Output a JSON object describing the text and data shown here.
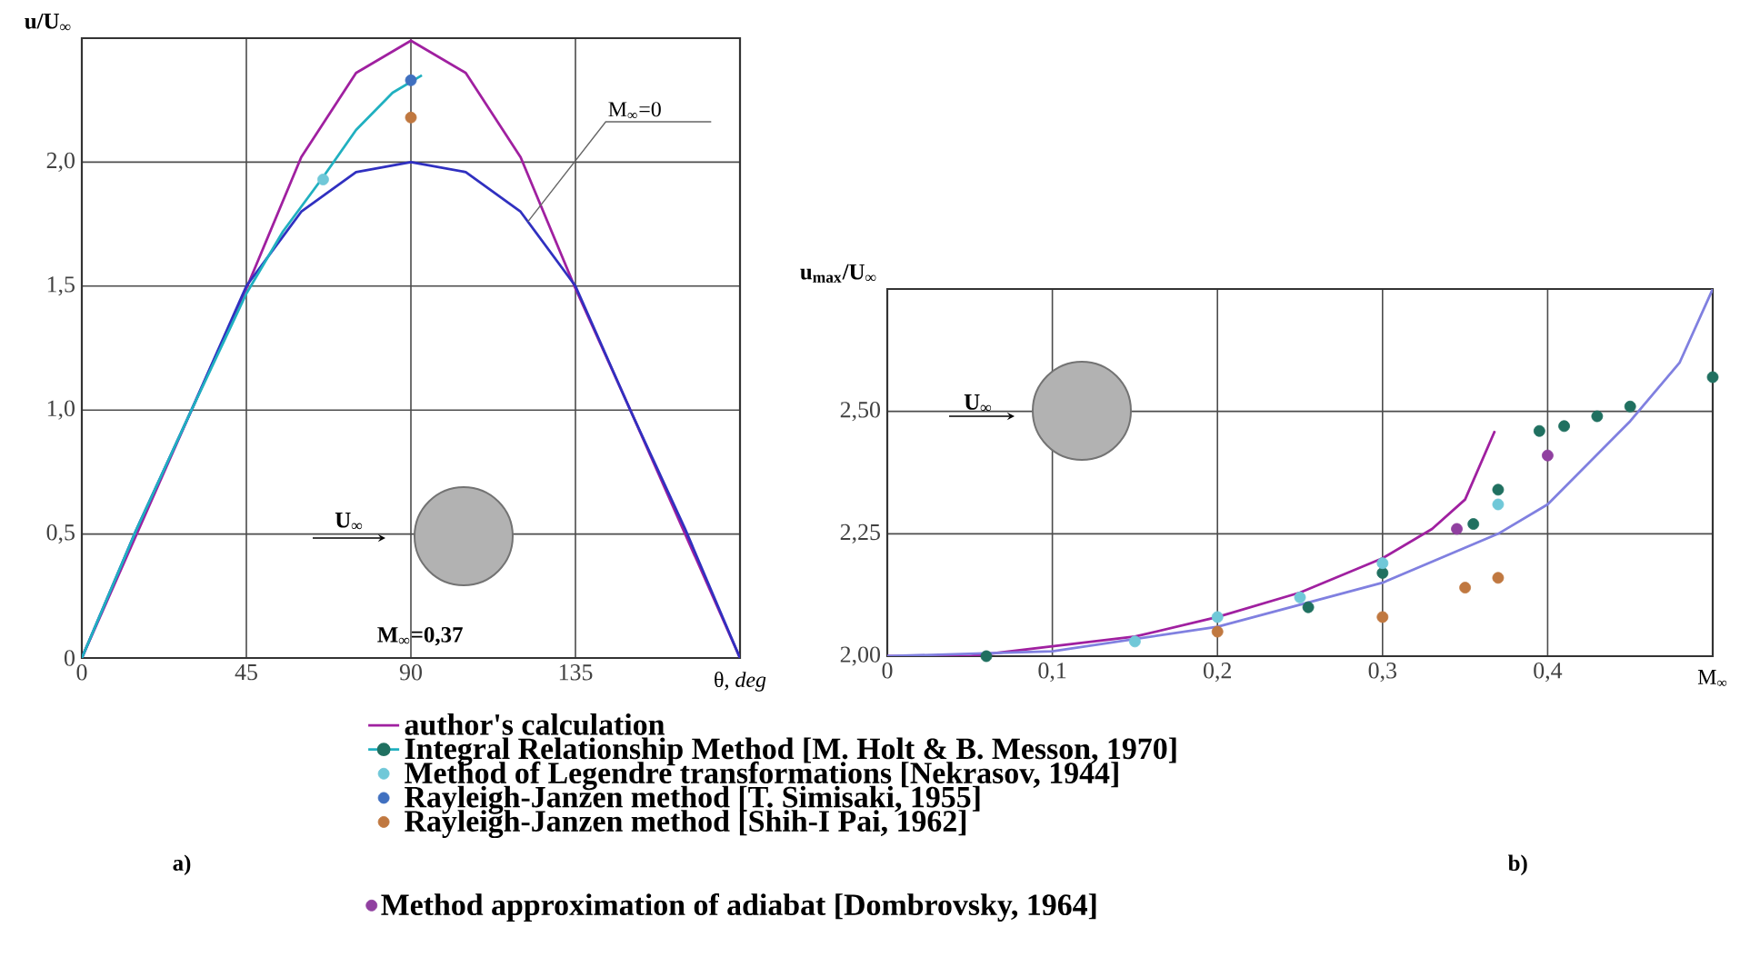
{
  "chart_data": [
    {
      "type": "line",
      "xlabel": "θ, *deg*",
      "ylabel": "u/U$_{∞}$",
      "xlim": [
        0,
        180
      ],
      "xticks": [
        0,
        45,
        90,
        135
      ],
      "ylim": [
        0,
        2.5
      ],
      "yticks": [
        0,
        {
          "value": 0.5,
          "label": "0,5"
        },
        {
          "value": 1.0,
          "label": "1,0"
        },
        {
          "value": 1.5,
          "label": "1,5"
        },
        {
          "value": 2.0,
          "label": "2,0"
        }
      ],
      "grid": true,
      "legend": "bottom",
      "series": [
        {
          "name": "author's calculation",
          "color": "#a020a0",
          "x": [
            0,
            15,
            30,
            45,
            60,
            75,
            90,
            105,
            120,
            135,
            150,
            165,
            180
          ],
          "values": [
            0,
            0.5,
            1.0,
            1.49,
            2.02,
            2.36,
            2.49,
            2.36,
            2.02,
            1.49,
            1.0,
            0.5,
            0
          ]
        },
        {
          "color": "#3030c0",
          "x": [
            0,
            15,
            30,
            45,
            60,
            75,
            90,
            105,
            120,
            135,
            150,
            165,
            180
          ],
          "values": [
            0,
            0.52,
            1.0,
            1.5,
            1.8,
            1.96,
            2.0,
            1.96,
            1.8,
            1.5,
            1.0,
            0.52,
            0
          ]
        },
        {
          "name": "Integral Relationship Method [M. Holt & B. Messon, 1970]",
          "color": "#20b0c0",
          "x": [
            0,
            15,
            30,
            45,
            55,
            66,
            75,
            85,
            93
          ],
          "values": [
            0,
            0.52,
            1.0,
            1.47,
            1.72,
            1.94,
            2.13,
            2.28,
            2.35
          ]
        },
        {
          "name": "Method of Legendre transformations [Nekrasov, 1944]",
          "type": "scatter",
          "marker": "circle",
          "color": "#70c8d8",
          "x": [
            66
          ],
          "values": [
            1.93
          ]
        },
        {
          "name": "Rayleigh-Janzen method [T. Simisaki, 1955]",
          "type": "scatter",
          "marker": "circle",
          "color": "#4070c0",
          "x": [
            90
          ],
          "values": [
            2.33
          ]
        },
        {
          "name": "Rayleigh-Janzen method [Shih-I Pai, 1962]",
          "type": "scatter",
          "marker": "circle",
          "color": "#c07840",
          "x": [
            90
          ],
          "values": [
            2.18
          ]
        }
      ],
      "annotations": [
        {
          "text": "M$_{∞}$=0",
          "x": 122,
          "y": 1.76
        },
        "U$_{∞}$",
        "M$_{∞}$=0,37",
        "a)"
      ]
    },
    {
      "type": "line",
      "xlabel": "M$_{∞}$",
      "ylabel": "u$_{max}$/U$_{∞}$",
      "xlim": [
        0,
        0.5
      ],
      "xticks": [
        0,
        {
          "value": 0.1,
          "label": "0,1"
        },
        {
          "value": 0.2,
          "label": "0,2"
        },
        {
          "value": 0.3,
          "label": "0,3"
        },
        {
          "value": 0.4,
          "label": "0,4"
        }
      ],
      "ylim": [
        2.0,
        2.75
      ],
      "yticks": [
        {
          "value": 2.0,
          "label": "2,00"
        },
        {
          "value": 2.25,
          "label": "2,25"
        },
        {
          "value": 2.5,
          "label": "2,50"
        }
      ],
      "grid": true,
      "legend": "bottom",
      "series": [
        {
          "name": "author's calculation",
          "color": "#a020a0",
          "x": [
            0,
            0.05,
            0.1,
            0.15,
            0.2,
            0.25,
            0.3,
            0.33,
            0.35,
            0.368
          ],
          "values": [
            2.0,
            2.0,
            2.02,
            2.04,
            2.08,
            2.13,
            2.2,
            2.26,
            2.32,
            2.46
          ]
        },
        {
          "color": "#8080e0",
          "x": [
            0,
            0.1,
            0.2,
            0.3,
            0.37,
            0.4,
            0.45,
            0.48,
            0.5
          ],
          "values": [
            2.0,
            2.01,
            2.06,
            2.15,
            2.25,
            2.31,
            2.48,
            2.6,
            2.75
          ]
        },
        {
          "name": "Integral Relationship Method [M. Holt & B. Messon, 1970]",
          "type": "scatter",
          "marker": "circle",
          "color": "#207060",
          "x": [
            0.06,
            0.255,
            0.3,
            0.355,
            0.37,
            0.395,
            0.41,
            0.43,
            0.45,
            0.5
          ],
          "values": [
            2.0,
            2.1,
            2.17,
            2.27,
            2.34,
            2.46,
            2.47,
            2.49,
            2.51,
            2.57
          ]
        },
        {
          "name": "Method of Legendre transformations [Nekrasov, 1944]",
          "type": "scatter",
          "marker": "circle",
          "color": "#70c8d8",
          "x": [
            0.15,
            0.2,
            0.25,
            0.3,
            0.37
          ],
          "values": [
            2.03,
            2.08,
            2.12,
            2.19,
            2.31
          ]
        },
        {
          "name": "Method approximation of adiabat [Dombrovsky, 1964]",
          "type": "scatter",
          "marker": "circle",
          "color": "#9040a0",
          "x": [
            0.345,
            0.4
          ],
          "values": [
            2.26,
            2.41
          ]
        },
        {
          "name": "Rayleigh-Janzen method [Shih-I Pai, 1962]",
          "type": "scatter",
          "marker": "circle",
          "color": "#c07840",
          "x": [
            0.2,
            0.3,
            0.35,
            0.37
          ],
          "values": [
            2.05,
            2.08,
            2.14,
            2.16
          ]
        }
      ],
      "annotations": [
        "U$_{∞}$",
        "b)"
      ]
    }
  ]
}
